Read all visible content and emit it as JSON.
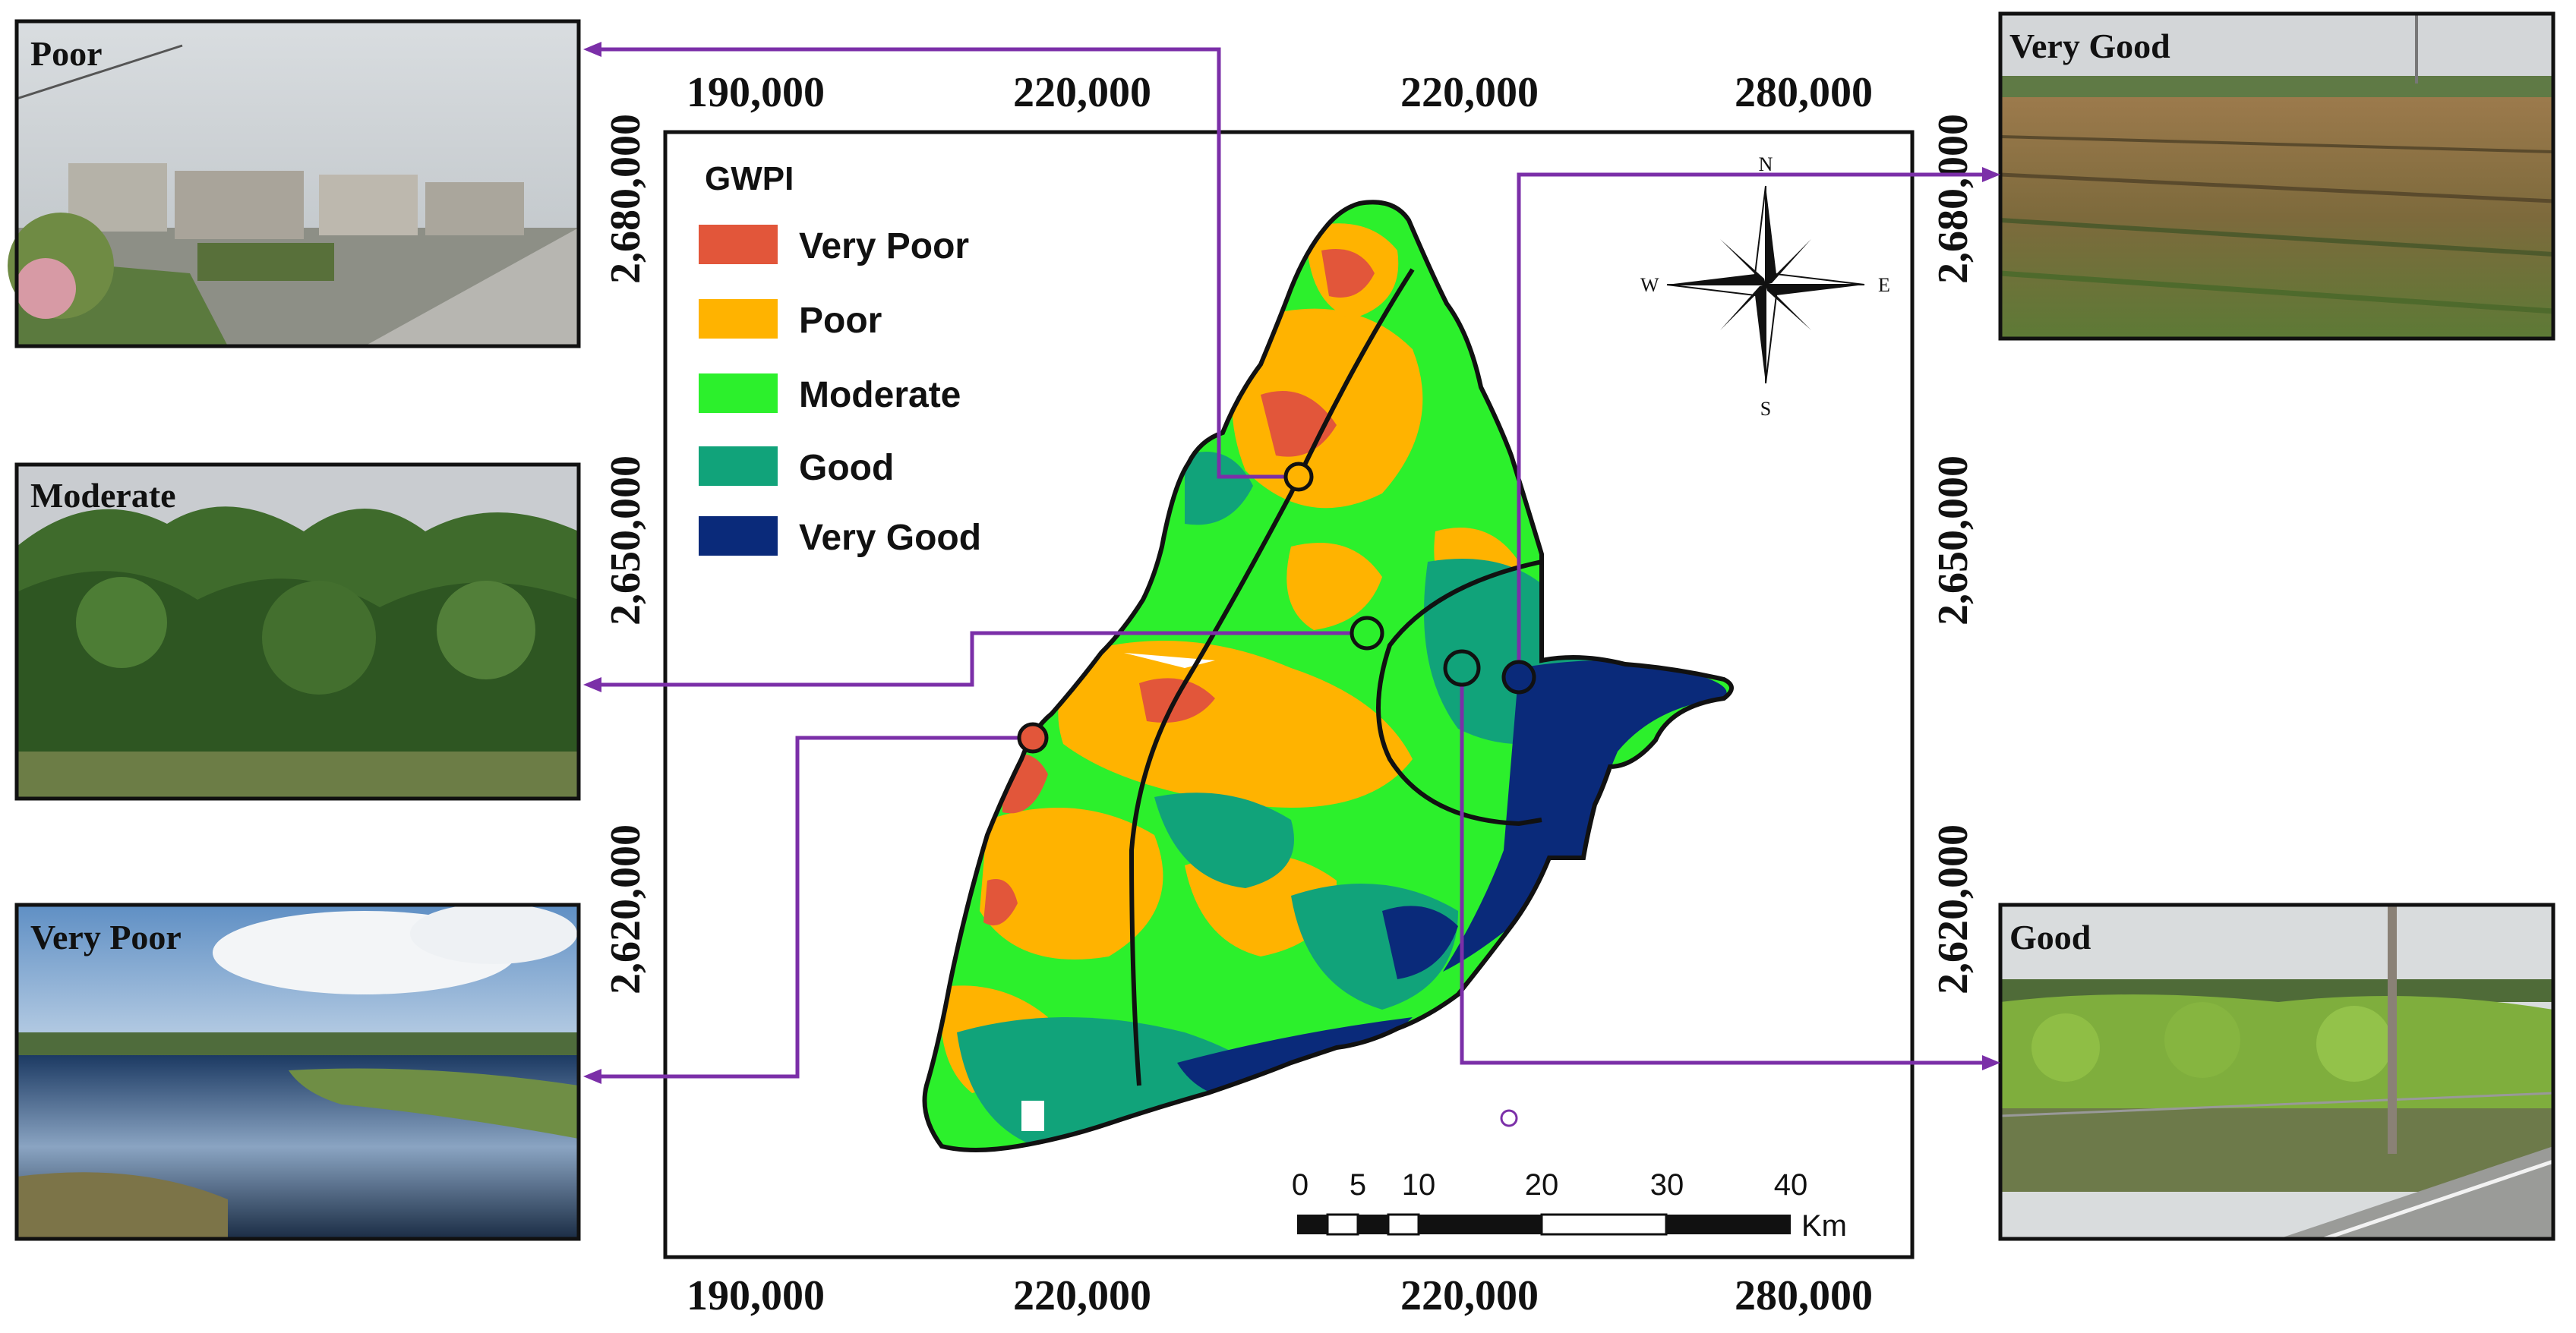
{
  "colors": {
    "very_poor": "#e2563a",
    "poor": "#ffb300",
    "moderate": "#2cf02c",
    "good": "#11a37a",
    "very_good": "#0a2a7a",
    "connector": "#7b2fa8",
    "frame": "#111111"
  },
  "map": {
    "x_ticks_top": [
      "190,000",
      "220,000",
      "220,000",
      "280,000"
    ],
    "x_ticks_bottom": [
      "190,000",
      "220,000",
      "220,000",
      "280,000"
    ],
    "y_ticks_left": [
      "2,680,000",
      "2,650,000",
      "2,620,000"
    ],
    "y_ticks_right": [
      "2,680,000",
      "2,650,000",
      "2,620,000"
    ]
  },
  "legend": {
    "title": "GWPI",
    "items": [
      {
        "label": "Very Poor",
        "color": "#e2563a"
      },
      {
        "label": "Poor",
        "color": "#ffb300"
      },
      {
        "label": "Moderate",
        "color": "#2cf02c"
      },
      {
        "label": "Good",
        "color": "#11a37a"
      },
      {
        "label": "Very Good",
        "color": "#0a2a7a"
      }
    ]
  },
  "compass": {
    "n": "N",
    "s": "S",
    "e": "E",
    "w": "W"
  },
  "scale_bar": {
    "ticks": [
      "0",
      "5",
      "10",
      "20",
      "30",
      "40"
    ],
    "unit": "Km"
  },
  "photos": [
    {
      "label": "Poor",
      "scene": "village"
    },
    {
      "label": "Moderate",
      "scene": "shrubs"
    },
    {
      "label": "Very Poor",
      "scene": "pond"
    },
    {
      "label": "Very Good",
      "scene": "field"
    },
    {
      "label": "Good",
      "scene": "vineyard"
    }
  ]
}
